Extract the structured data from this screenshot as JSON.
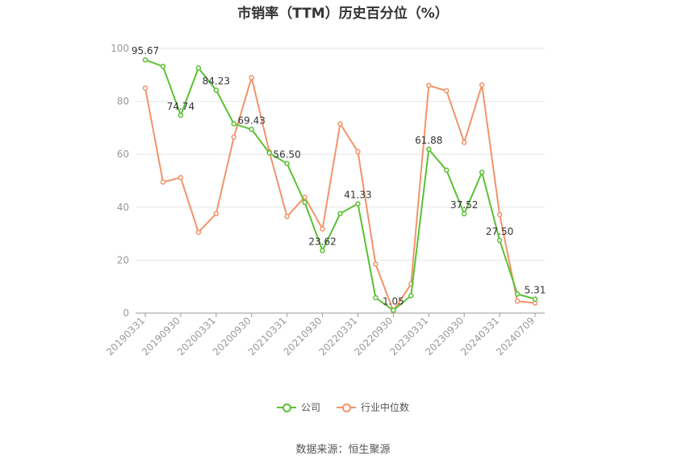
{
  "chart_data": {
    "type": "line",
    "title": "市销率（TTM）历史百分位（%）",
    "ylim": [
      0,
      100
    ],
    "y_ticks": [
      "0",
      "20",
      "40",
      "60",
      "80",
      "100"
    ],
    "x_ticks": [
      "20190331",
      "20190930",
      "20200331",
      "20200930",
      "20210331",
      "20210930",
      "20220331",
      "20220930",
      "20230331",
      "20230930",
      "20240331",
      "20240709"
    ],
    "x": [
      "20190331",
      "20190630",
      "20190930",
      "20191231",
      "20200331",
      "20200630",
      "20200930",
      "20201231",
      "20210331",
      "20210630",
      "20210930",
      "20211231",
      "20220331",
      "20220630",
      "20220930",
      "20221231",
      "20230331",
      "20230630",
      "20230930",
      "20231231",
      "20240331",
      "20240630",
      "20240709"
    ],
    "grid": true,
    "legend_position": "bottom",
    "series": [
      {
        "name": "公司",
        "color": "#5ac134",
        "values": [
          95.67,
          93.2,
          74.74,
          92.6,
          84.23,
          71.5,
          69.43,
          60.5,
          56.5,
          41.8,
          23.62,
          37.6,
          41.33,
          5.8,
          1.05,
          6.6,
          61.88,
          54.0,
          37.52,
          53.2,
          27.5,
          7.2,
          5.31
        ],
        "labels": {
          "0": "95.67",
          "2": "74.74",
          "4": "84.23",
          "6": "69.43",
          "8": "56.50",
          "10": "23.62",
          "12": "41.33",
          "14": "1.05",
          "16": "61.88",
          "18": "37.52",
          "20": "27.50",
          "22": "5.31"
        }
      },
      {
        "name": "行业中位数",
        "color": "#f39369",
        "values": [
          85.0,
          49.5,
          51.2,
          30.5,
          37.6,
          66.5,
          89.0,
          61.0,
          36.5,
          43.8,
          31.8,
          71.5,
          61.0,
          18.5,
          0.8,
          11.0,
          86.0,
          84.0,
          64.5,
          86.2,
          37.2,
          4.5,
          3.8
        ]
      }
    ]
  },
  "source_text": "数据来源：恒生聚源"
}
